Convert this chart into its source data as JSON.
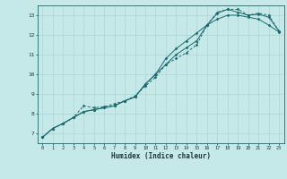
{
  "xlabel": "Humidex (Indice chaleur)",
  "background_color": "#c5e8e8",
  "grid_color": "#a8d0d0",
  "line_color": "#1a6b6b",
  "spine_color": "#1a6b6b",
  "xlim": [
    -0.5,
    23.5
  ],
  "ylim": [
    6.5,
    13.5
  ],
  "xticks": [
    0,
    1,
    2,
    3,
    4,
    5,
    6,
    7,
    8,
    9,
    10,
    11,
    12,
    13,
    14,
    15,
    16,
    17,
    18,
    19,
    20,
    21,
    22,
    23
  ],
  "yticks": [
    7,
    8,
    9,
    10,
    11,
    12,
    13
  ],
  "line1_x": [
    0,
    1,
    2,
    3,
    4,
    5,
    6,
    7,
    8,
    9,
    10,
    11,
    12,
    13,
    14,
    15,
    16,
    17,
    18,
    19,
    20,
    21,
    22,
    23
  ],
  "line1_y": [
    6.8,
    7.25,
    7.5,
    7.8,
    8.1,
    8.2,
    8.3,
    8.4,
    8.65,
    8.85,
    9.5,
    10.0,
    10.5,
    11.0,
    11.35,
    11.7,
    12.5,
    13.1,
    13.3,
    13.15,
    13.0,
    13.05,
    12.9,
    12.2
  ],
  "line2_x": [
    0,
    1,
    2,
    3,
    4,
    5,
    6,
    7,
    8,
    9,
    10,
    11,
    12,
    13,
    14,
    15,
    16,
    17,
    18,
    19,
    20,
    21,
    22,
    23
  ],
  "line2_y": [
    6.8,
    7.25,
    7.5,
    7.8,
    8.4,
    8.3,
    8.35,
    8.5,
    8.65,
    8.9,
    9.4,
    9.85,
    10.5,
    10.8,
    11.1,
    11.5,
    12.5,
    13.15,
    13.3,
    13.3,
    13.0,
    13.1,
    13.0,
    12.2
  ],
  "line3_x": [
    0,
    1,
    2,
    3,
    4,
    5,
    6,
    7,
    8,
    9,
    10,
    11,
    12,
    13,
    14,
    15,
    16,
    17,
    18,
    19,
    20,
    21,
    22,
    23
  ],
  "line3_y": [
    6.8,
    7.25,
    7.5,
    7.8,
    8.1,
    8.2,
    8.3,
    8.4,
    8.65,
    8.85,
    9.5,
    10.0,
    10.8,
    11.3,
    11.7,
    12.1,
    12.5,
    12.8,
    13.0,
    13.0,
    12.9,
    12.8,
    12.5,
    12.15
  ]
}
